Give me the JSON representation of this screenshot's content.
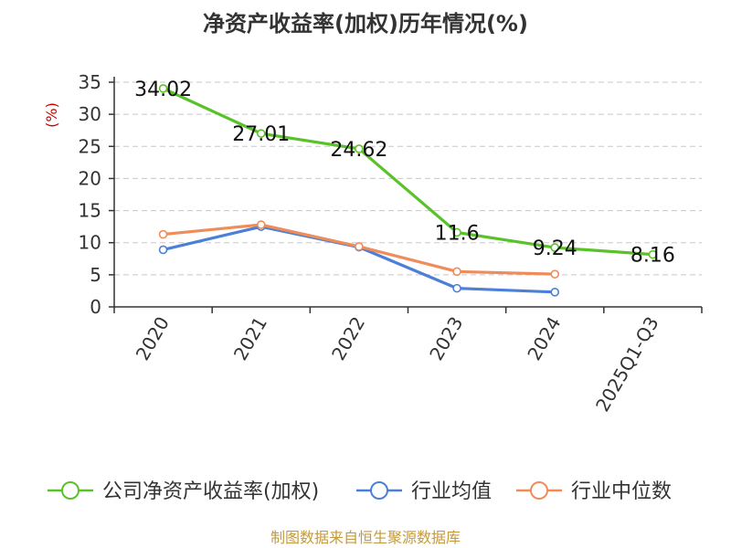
{
  "chart_data": {
    "type": "line",
    "title": "净资产收益率(加权)历年情况(%)",
    "ylabel": "(%)",
    "categories": [
      "2020",
      "2021",
      "2022",
      "2023",
      "2024",
      "2025Q1-Q3"
    ],
    "ylim": [
      0,
      35
    ],
    "yticks": [
      0,
      5,
      10,
      15,
      20,
      25,
      30,
      35
    ],
    "grid": true,
    "legend_position": "bottom",
    "series": [
      {
        "name": "公司净资产收益率(加权)",
        "color": "#5ac229",
        "values": [
          34.02,
          27.01,
          24.62,
          11.6,
          9.24,
          8.16
        ],
        "labels": [
          "34.02",
          "27.01",
          "24.62",
          "11.6",
          "9.24",
          "8.16"
        ]
      },
      {
        "name": "行业均值",
        "color": "#4c7fd6",
        "values": [
          8.9,
          12.5,
          9.3,
          2.9,
          2.3,
          null
        ]
      },
      {
        "name": "行业中位数",
        "color": "#f08c5a",
        "values": [
          11.3,
          12.8,
          9.4,
          5.5,
          5.1,
          null
        ]
      }
    ]
  },
  "footer": {
    "source": "制图数据来自恒生聚源数据库"
  }
}
